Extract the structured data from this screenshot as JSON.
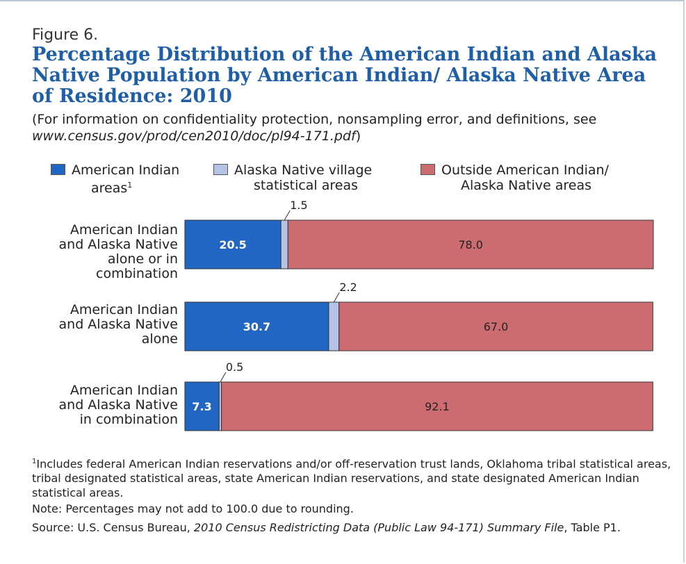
{
  "figure_label": "Figure 6.",
  "title": "Percentage Distribution of the American Indian and Alaska Native Population by American Indian/ Alaska Native Area of Residence: 2010",
  "subtitle_prefix": "(For information on confidentiality protection, nonsampling error, and definitions, see ",
  "subtitle_url": "www.census.gov/prod/cen2010/doc/pl94-171.pdf",
  "subtitle_suffix": ")",
  "colors": {
    "american_indian_areas": "#2166c3",
    "alaska_native_village": "#b4c3e6",
    "outside_areas": "#cd6c70"
  },
  "chart_data": {
    "type": "bar",
    "orientation": "horizontal",
    "stacked": true,
    "categories": [
      "American Indian\nand Alaska Native\nalone or in\ncombination",
      "American Indian\nand Alaska Native\nalone",
      "American Indian\nand Alaska Native\nin combination"
    ],
    "series": [
      {
        "name": "American Indian areas",
        "footnote_mark": "1",
        "values": [
          20.5,
          30.7,
          7.3
        ]
      },
      {
        "name": "Alaska Native village statistical areas",
        "values": [
          1.5,
          2.2,
          0.5
        ]
      },
      {
        "name": "Outside American Indian/ Alaska Native areas",
        "values": [
          78.0,
          67.0,
          92.1
        ]
      }
    ],
    "data_labels": [
      [
        "20.5",
        "1.5",
        "78.0"
      ],
      [
        "30.7",
        "2.2",
        "67.0"
      ],
      [
        "7.3",
        "0.5",
        "92.1"
      ]
    ],
    "xlim": [
      0,
      100
    ],
    "legend_position": "top",
    "grid": false
  },
  "footnote": "Includes federal American Indian reservations and/or off-reservation trust lands, Oklahoma tribal statistical areas, tribal designated statistical areas, state American Indian reservations, and state designated American Indian statistical areas.",
  "footnote_mark": "1",
  "note": "Note: Percentages may not add to 100.0 due to rounding.",
  "source_prefix": "Source: U.S. Census Bureau, ",
  "source_italic": "2010 Census Redistricting Data (Public Law 94-171) Summary File",
  "source_suffix": ", Table P1."
}
